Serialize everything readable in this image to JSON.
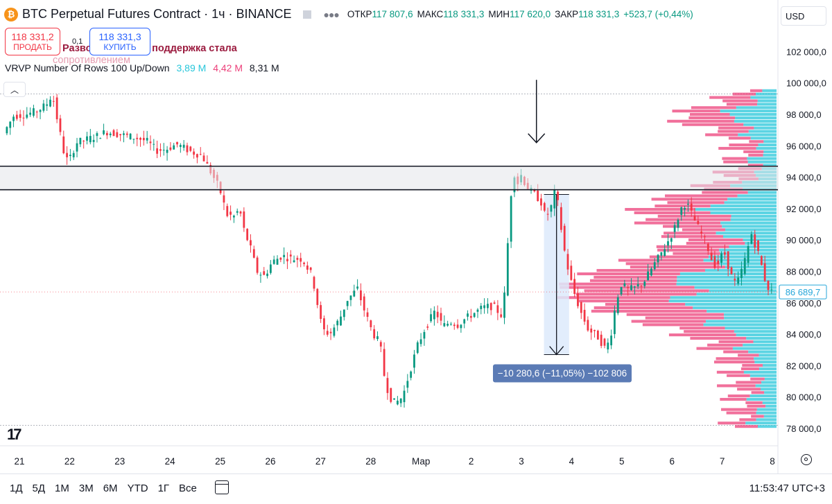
{
  "header": {
    "logo_glyph": "₿",
    "title": "BTC Perpetual Futures Contract · 1ч · BINANCE",
    "ohlc": [
      {
        "label": "ОТКР",
        "value": "117 807,6"
      },
      {
        "label": "МАКС",
        "value": "118 331,3"
      },
      {
        "label": "МИН",
        "value": "117 620,0"
      },
      {
        "label": "ЗАКР",
        "value": "118 331,3"
      }
    ],
    "change": "+523,7 (+0,44%)"
  },
  "trade": {
    "sell_price": "118 331,2",
    "sell_label": "ПРОДАТЬ",
    "spread": "0,1",
    "buy_price": "118 331,3",
    "buy_label": "КУПИТЬ"
  },
  "notes": {
    "line1": "Разворот тренда, поддержка стала",
    "line2": "сопротивлением"
  },
  "indicator": {
    "name": "VRVP Number Of Rows 100 Up/Down",
    "up": "3,89 M",
    "down": "4,42 M",
    "total": "8,31 M"
  },
  "currency": "USD",
  "current_price": "86 689,7",
  "measure_label": "−10 280,6 (−11,05%) −102 806",
  "bottom": {
    "periods": [
      "1Д",
      "5Д",
      "1М",
      "3М",
      "6М",
      "YTD",
      "1Г",
      "Все"
    ],
    "clock": "11:53:47 UTC+3"
  },
  "colors": {
    "up": "#089981",
    "down": "#f23645",
    "vp_up": "#26c6da",
    "vp_down": "#ec407a",
    "measure_fill": "#ddeafb",
    "measure_label_bg": "#5b7bb5"
  },
  "chart_data": {
    "type": "candlestick",
    "ylim": [
      77500,
      103500
    ],
    "y_ticks": [
      "78 000,0",
      "80 000,0",
      "82 000,0",
      "84 000,0",
      "86 000,0",
      "88 000,0",
      "90 000,0",
      "92 000,0",
      "94 000,0",
      "96 000,0",
      "98 000,0",
      "100 000,0",
      "102 000,0"
    ],
    "y_tick_values": [
      78000,
      80000,
      82000,
      84000,
      86000,
      88000,
      90000,
      92000,
      94000,
      96000,
      98000,
      100000,
      102000
    ],
    "x_ticks": [
      "21",
      "22",
      "23",
      "24",
      "25",
      "26",
      "27",
      "28",
      "Мар",
      "2",
      "3",
      "4",
      "5",
      "6",
      "7",
      "8"
    ],
    "x_range_days": [
      20.75,
      36.1
    ],
    "x_tick_days": [
      21,
      22,
      23,
      24,
      25,
      26,
      27,
      28,
      29,
      30,
      31,
      32,
      33,
      34,
      35,
      36
    ],
    "resistance_lines": [
      94700,
      93200
    ],
    "dotted_levels": [
      99300,
      78200
    ],
    "arrow_at": {
      "day": 31.3,
      "from": 100200,
      "to": 96200
    },
    "measure": {
      "day_start": 31.45,
      "day_end": 31.95,
      "from": 92900,
      "to": 82700
    },
    "price_path": [
      [
        20.75,
        96800
      ],
      [
        20.95,
        97900
      ],
      [
        21.2,
        98000
      ],
      [
        21.4,
        98200
      ],
      [
        21.6,
        98600
      ],
      [
        21.72,
        99300
      ],
      [
        21.85,
        97200
      ],
      [
        21.97,
        95300
      ],
      [
        22.05,
        95000
      ],
      [
        22.2,
        96200
      ],
      [
        22.4,
        96400
      ],
      [
        22.6,
        96600
      ],
      [
        22.8,
        96900
      ],
      [
        23.1,
        96700
      ],
      [
        23.4,
        96500
      ],
      [
        23.6,
        96300
      ],
      [
        23.8,
        95700
      ],
      [
        24.0,
        95800
      ],
      [
        24.2,
        96100
      ],
      [
        24.5,
        95600
      ],
      [
        24.7,
        95400
      ],
      [
        24.9,
        94200
      ],
      [
        25.05,
        93300
      ],
      [
        25.2,
        91600
      ],
      [
        25.35,
        91500
      ],
      [
        25.45,
        92000
      ],
      [
        25.55,
        90500
      ],
      [
        25.65,
        89700
      ],
      [
        25.8,
        88000
      ],
      [
        25.95,
        87700
      ],
      [
        26.1,
        88600
      ],
      [
        26.3,
        89000
      ],
      [
        26.5,
        88800
      ],
      [
        26.7,
        88800
      ],
      [
        26.9,
        87700
      ],
      [
        27.0,
        86000
      ],
      [
        27.1,
        84300
      ],
      [
        27.25,
        84000
      ],
      [
        27.45,
        85000
      ],
      [
        27.6,
        86200
      ],
      [
        27.8,
        86900
      ],
      [
        27.95,
        85400
      ],
      [
        28.1,
        84100
      ],
      [
        28.25,
        83400
      ],
      [
        28.35,
        81000
      ],
      [
        28.45,
        80000
      ],
      [
        28.55,
        79600
      ],
      [
        28.7,
        80000
      ],
      [
        28.85,
        81700
      ],
      [
        29.0,
        83300
      ],
      [
        29.15,
        84400
      ],
      [
        29.35,
        85500
      ],
      [
        29.5,
        84500
      ],
      [
        29.65,
        84800
      ],
      [
        29.8,
        84600
      ],
      [
        29.95,
        85000
      ],
      [
        30.1,
        85300
      ],
      [
        30.3,
        85700
      ],
      [
        30.5,
        85800
      ],
      [
        30.7,
        85100
      ],
      [
        30.78,
        89000
      ],
      [
        30.85,
        92700
      ],
      [
        30.92,
        94300
      ],
      [
        31.0,
        93600
      ],
      [
        31.08,
        94300
      ],
      [
        31.15,
        93400
      ],
      [
        31.3,
        93000
      ],
      [
        31.45,
        92500
      ],
      [
        31.55,
        91400
      ],
      [
        31.65,
        92000
      ],
      [
        31.75,
        93300
      ],
      [
        31.82,
        91700
      ],
      [
        31.9,
        89700
      ],
      [
        32.0,
        88100
      ],
      [
        32.1,
        86800
      ],
      [
        32.25,
        85400
      ],
      [
        32.4,
        84300
      ],
      [
        32.6,
        83800
      ],
      [
        32.75,
        83000
      ],
      [
        32.85,
        84000
      ],
      [
        32.95,
        86000
      ],
      [
        33.05,
        87200
      ],
      [
        33.2,
        86800
      ],
      [
        33.35,
        87000
      ],
      [
        33.5,
        87300
      ],
      [
        33.7,
        88400
      ],
      [
        33.9,
        89400
      ],
      [
        34.1,
        90600
      ],
      [
        34.25,
        92000
      ],
      [
        34.35,
        92400
      ],
      [
        34.45,
        91700
      ],
      [
        34.6,
        90700
      ],
      [
        34.75,
        89800
      ],
      [
        34.85,
        88800
      ],
      [
        34.95,
        88300
      ],
      [
        35.1,
        89300
      ],
      [
        35.25,
        87700
      ],
      [
        35.35,
        87100
      ],
      [
        35.5,
        88500
      ],
      [
        35.65,
        90400
      ],
      [
        35.8,
        89000
      ],
      [
        35.95,
        87100
      ],
      [
        36.05,
        86700
      ]
    ],
    "volume_profile": {
      "price_from": 78000,
      "price_to": 99600,
      "rows": 100,
      "shape": "double-hump"
    }
  }
}
